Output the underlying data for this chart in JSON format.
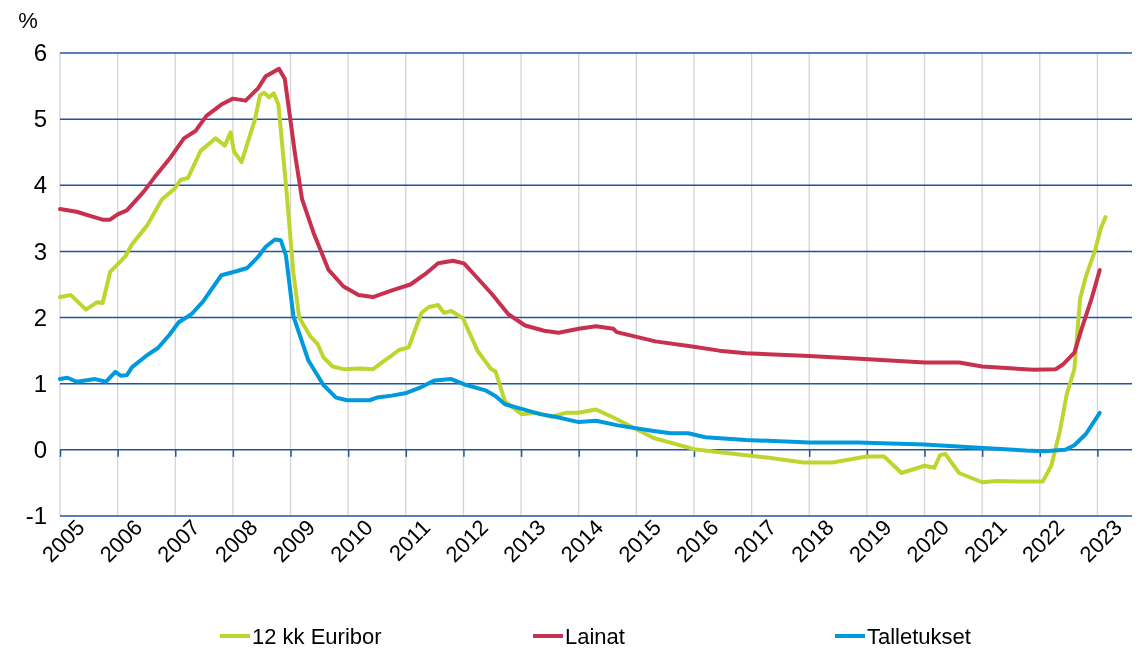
{
  "chart_data": {
    "type": "line",
    "ylabel": "%",
    "xlim": [
      2005,
      2023.6
    ],
    "xticks": [
      2005,
      2006,
      2007,
      2008,
      2009,
      2010,
      2011,
      2012,
      2013,
      2014,
      2015,
      2016,
      2017,
      2018,
      2019,
      2020,
      2021,
      2022,
      2023
    ],
    "ylim": [
      -1,
      6
    ],
    "yticks": [
      -1,
      0,
      1,
      2,
      3,
      4,
      5,
      6
    ],
    "grid": true,
    "legend": "bottom",
    "line_style": "solid",
    "marker": "none",
    "series": [
      {
        "name": "12 kk Euribor",
        "color": "#bed530",
        "x": [
          2005,
          2005.19,
          2005.45,
          2005.64,
          2005.74,
          2005.87,
          2006.13,
          2006.25,
          2006.51,
          2006.77,
          2006.99,
          2007.09,
          2007.22,
          2007.44,
          2007.7,
          2007.86,
          2007.96,
          2008.02,
          2008.15,
          2008.38,
          2008.47,
          2008.54,
          2008.63,
          2008.71,
          2008.79,
          2008.92,
          2009.05,
          2009.15,
          2009.34,
          2009.47,
          2009.57,
          2009.73,
          2009.92,
          2010.21,
          2010.43,
          2010.63,
          2010.76,
          2010.88,
          2011.05,
          2011.27,
          2011.4,
          2011.56,
          2011.66,
          2011.79,
          2011.99,
          2012.25,
          2012.47,
          2012.56,
          2012.72,
          2013.01,
          2013.27,
          2013.53,
          2013.78,
          2014.0,
          2014.3,
          2014.6,
          2015.3,
          2016.0,
          2016.6,
          2017.3,
          2017.9,
          2018.4,
          2019.0,
          2019.3,
          2019.6,
          2020.0,
          2020.17,
          2020.27,
          2020.36,
          2020.6,
          2021.0,
          2021.25,
          2021.76,
          2022.05,
          2022.2,
          2022.35,
          2022.47,
          2022.6,
          2022.7,
          2022.8,
          2022.96,
          2023.06,
          2023.14
        ],
        "values": [
          2.31,
          2.34,
          2.12,
          2.23,
          2.22,
          2.69,
          2.92,
          3.11,
          3.39,
          3.79,
          3.95,
          4.08,
          4.11,
          4.52,
          4.71,
          4.6,
          4.8,
          4.51,
          4.35,
          4.99,
          5.36,
          5.4,
          5.33,
          5.39,
          5.22,
          4.01,
          2.67,
          2.0,
          1.72,
          1.6,
          1.4,
          1.26,
          1.22,
          1.23,
          1.22,
          1.35,
          1.43,
          1.51,
          1.55,
          2.07,
          2.16,
          2.19,
          2.07,
          2.1,
          1.99,
          1.49,
          1.23,
          1.18,
          0.73,
          0.54,
          0.56,
          0.5,
          0.56,
          0.56,
          0.61,
          0.49,
          0.18,
          0.01,
          -0.05,
          -0.12,
          -0.19,
          -0.19,
          -0.1,
          -0.1,
          -0.35,
          -0.24,
          -0.27,
          -0.08,
          -0.06,
          -0.35,
          -0.49,
          -0.47,
          -0.48,
          -0.48,
          -0.24,
          0.29,
          0.85,
          1.22,
          2.29,
          2.62,
          3.02,
          3.35,
          3.52
        ]
      },
      {
        "name": "Lainat",
        "color": "#c8304f",
        "x": [
          2005,
          2005.29,
          2005.55,
          2005.74,
          2005.87,
          2006.0,
          2006.16,
          2006.45,
          2006.64,
          2006.9,
          2007.15,
          2007.35,
          2007.54,
          2007.8,
          2008.0,
          2008.22,
          2008.44,
          2008.57,
          2008.8,
          2008.9,
          2009.08,
          2009.2,
          2009.4,
          2009.66,
          2009.92,
          2010.18,
          2010.43,
          2010.76,
          2011.08,
          2011.34,
          2011.56,
          2011.82,
          2012.01,
          2012.23,
          2012.49,
          2012.78,
          2013.07,
          2013.4,
          2013.65,
          2014.0,
          2014.3,
          2014.6,
          2014.66,
          2015.33,
          2016.0,
          2016.44,
          2016.9,
          2018.0,
          2019.03,
          2020.0,
          2020.6,
          2021.0,
          2021.9,
          2022.28,
          2022.4,
          2022.6,
          2022.73,
          2022.9,
          2023.04
        ],
        "values": [
          3.64,
          3.6,
          3.53,
          3.48,
          3.48,
          3.56,
          3.62,
          3.9,
          4.12,
          4.4,
          4.71,
          4.82,
          5.05,
          5.22,
          5.31,
          5.28,
          5.47,
          5.65,
          5.76,
          5.61,
          4.46,
          3.79,
          3.28,
          2.72,
          2.47,
          2.34,
          2.31,
          2.41,
          2.5,
          2.66,
          2.82,
          2.86,
          2.82,
          2.61,
          2.36,
          2.05,
          1.88,
          1.8,
          1.77,
          1.83,
          1.87,
          1.83,
          1.78,
          1.64,
          1.56,
          1.5,
          1.46,
          1.42,
          1.37,
          1.32,
          1.32,
          1.26,
          1.21,
          1.22,
          1.29,
          1.47,
          1.84,
          2.29,
          2.72
        ]
      },
      {
        "name": "Talletukset",
        "color": "#0099dd",
        "x": [
          2005,
          2005.13,
          2005.29,
          2005.61,
          2005.8,
          2005.96,
          2006.06,
          2006.16,
          2006.25,
          2006.51,
          2006.7,
          2006.9,
          2007.06,
          2007.28,
          2007.48,
          2007.8,
          2008.06,
          2008.25,
          2008.44,
          2008.57,
          2008.73,
          2008.83,
          2008.92,
          2009.05,
          2009.31,
          2009.57,
          2009.79,
          2009.98,
          2010.37,
          2010.5,
          2010.76,
          2011.01,
          2011.27,
          2011.5,
          2011.79,
          2012.05,
          2012.38,
          2012.56,
          2012.72,
          2013.01,
          2013.33,
          2013.59,
          2014.0,
          2014.3,
          2014.68,
          2015.27,
          2015.6,
          2015.9,
          2016.2,
          2016.9,
          2018.0,
          2018.84,
          2020.0,
          2020.8,
          2021.76,
          2022.08,
          2022.44,
          2022.6,
          2022.8,
          2023.04
        ],
        "values": [
          1.07,
          1.09,
          1.03,
          1.07,
          1.03,
          1.18,
          1.12,
          1.13,
          1.25,
          1.43,
          1.54,
          1.74,
          1.93,
          2.05,
          2.24,
          2.64,
          2.7,
          2.75,
          2.92,
          3.07,
          3.18,
          3.17,
          2.94,
          2.02,
          1.35,
          0.98,
          0.79,
          0.75,
          0.75,
          0.79,
          0.82,
          0.86,
          0.95,
          1.05,
          1.07,
          0.98,
          0.9,
          0.81,
          0.69,
          0.62,
          0.54,
          0.5,
          0.42,
          0.44,
          0.37,
          0.29,
          0.25,
          0.25,
          0.19,
          0.15,
          0.11,
          0.11,
          0.08,
          0.04,
          -0.01,
          -0.02,
          0,
          0.07,
          0.24,
          0.56
        ]
      }
    ]
  }
}
